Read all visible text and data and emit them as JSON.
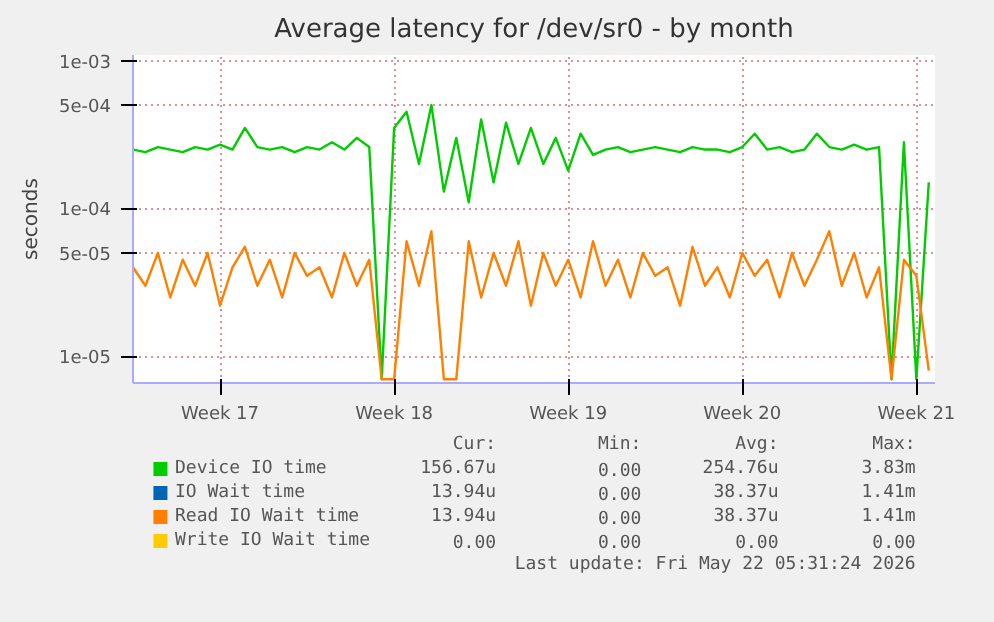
{
  "chart_data": {
    "type": "line",
    "title": "Average latency for /dev/sr0 - by month",
    "ylabel": "seconds",
    "log": true,
    "grid": true,
    "legend": "bottom",
    "xlim": [
      "2026-04-20T00:00",
      "2026-05-22T06:00"
    ],
    "xticks": [
      {
        "value": "2026-04-23T12:00",
        "label": "Week 17"
      },
      {
        "value": "2026-04-30T12:00",
        "label": "Week 18"
      },
      {
        "value": "2026-05-07T12:00",
        "label": "Week 19"
      },
      {
        "value": "2026-05-14T12:00",
        "label": "Week 20"
      },
      {
        "value": "2026-05-21T12:00",
        "label": "Week 21"
      }
    ],
    "ylim": [
      6.6e-06,
      0.00109
    ],
    "yticks": [
      {
        "value": 1e-05,
        "label": "1e-05"
      },
      {
        "value": 5e-05,
        "label": "5e-05"
      },
      {
        "value": 0.0001,
        "label": "1e-04"
      },
      {
        "value": 0.0005,
        "label": "5e-04"
      },
      {
        "value": 0.001,
        "label": "1e-03"
      }
    ],
    "x": [
      "2026-04-20T00:00",
      "2026-04-20T12:00",
      "2026-04-21T00:00",
      "2026-04-21T12:00",
      "2026-04-22T00:00",
      "2026-04-22T12:00",
      "2026-04-23T00:00",
      "2026-04-23T12:00",
      "2026-04-24T00:00",
      "2026-04-24T12:00",
      "2026-04-25T00:00",
      "2026-04-25T12:00",
      "2026-04-26T00:00",
      "2026-04-26T12:00",
      "2026-04-27T00:00",
      "2026-04-27T12:00",
      "2026-04-28T00:00",
      "2026-04-28T12:00",
      "2026-04-29T00:00",
      "2026-04-29T12:00",
      "2026-04-30T00:00",
      "2026-04-30T12:00",
      "2026-05-01T00:00",
      "2026-05-01T12:00",
      "2026-05-02T00:00",
      "2026-05-02T12:00",
      "2026-05-03T00:00",
      "2026-05-03T12:00",
      "2026-05-04T00:00",
      "2026-05-04T12:00",
      "2026-05-05T00:00",
      "2026-05-05T12:00",
      "2026-05-06T00:00",
      "2026-05-06T12:00",
      "2026-05-07T00:00",
      "2026-05-07T12:00",
      "2026-05-08T00:00",
      "2026-05-08T12:00",
      "2026-05-09T00:00",
      "2026-05-09T12:00",
      "2026-05-10T00:00",
      "2026-05-10T12:00",
      "2026-05-11T00:00",
      "2026-05-11T12:00",
      "2026-05-12T00:00",
      "2026-05-12T12:00",
      "2026-05-13T00:00",
      "2026-05-13T12:00",
      "2026-05-14T00:00",
      "2026-05-14T12:00",
      "2026-05-15T00:00",
      "2026-05-15T12:00",
      "2026-05-16T00:00",
      "2026-05-16T12:00",
      "2026-05-17T00:00",
      "2026-05-17T12:00",
      "2026-05-18T00:00",
      "2026-05-18T12:00",
      "2026-05-19T00:00",
      "2026-05-19T12:00",
      "2026-05-20T00:00",
      "2026-05-20T12:00",
      "2026-05-21T00:00",
      "2026-05-21T12:00",
      "2026-05-22T00:00"
    ],
    "series": [
      {
        "name": "Device IO time",
        "color": "#00cc00",
        "values": [
          0.00025,
          0.00024,
          0.00026,
          0.00025,
          0.00024,
          0.00026,
          0.00025,
          0.00027,
          0.00025,
          0.00035,
          0.00026,
          0.00025,
          0.00026,
          0.00024,
          0.00026,
          0.00025,
          0.00028,
          0.00025,
          0.0003,
          0.00026,
          7e-06,
          0.00035,
          0.00045,
          0.0002,
          0.0005,
          0.00013,
          0.0003,
          0.00011,
          0.0004,
          0.00015,
          0.00038,
          0.0002,
          0.00035,
          0.0002,
          0.0003,
          0.00018,
          0.00032,
          0.00023,
          0.00025,
          0.00026,
          0.00024,
          0.00025,
          0.00026,
          0.00025,
          0.00024,
          0.00026,
          0.00025,
          0.00025,
          0.00024,
          0.00026,
          0.00032,
          0.00025,
          0.00026,
          0.00024,
          0.00025,
          0.00032,
          0.00026,
          0.00025,
          0.00027,
          0.00025,
          0.00026,
          7e-06,
          0.00028,
          7e-06,
          0.00015
        ]
      },
      {
        "name": "IO Wait time",
        "color": "#0066b3",
        "values": [
          null,
          null,
          null,
          null,
          null,
          null,
          null,
          null,
          null,
          null,
          null,
          null,
          null,
          null,
          null,
          null,
          null,
          null,
          null,
          null,
          null,
          null,
          null,
          null,
          null,
          null,
          null,
          null,
          null,
          null,
          null,
          null,
          null,
          null,
          null,
          null,
          null,
          null,
          null,
          null,
          null,
          null,
          null,
          null,
          null,
          null,
          null,
          null,
          null,
          null,
          null,
          null,
          null,
          null,
          null,
          null,
          null,
          null,
          null,
          null,
          null,
          null,
          null,
          null,
          null
        ]
      },
      {
        "name": "Read IO Wait time",
        "color": "#ff8000",
        "values": [
          4e-05,
          3e-05,
          5e-05,
          2.5e-05,
          4.5e-05,
          3e-05,
          5e-05,
          2.2e-05,
          4e-05,
          5.5e-05,
          3e-05,
          4.5e-05,
          2.5e-05,
          5e-05,
          3.5e-05,
          4e-05,
          2.5e-05,
          5e-05,
          3e-05,
          4.5e-05,
          7e-06,
          7e-06,
          6e-05,
          3e-05,
          7e-05,
          7e-06,
          7e-06,
          6e-05,
          2.5e-05,
          5e-05,
          3e-05,
          6e-05,
          2.2e-05,
          5e-05,
          3e-05,
          4.5e-05,
          2.5e-05,
          6e-05,
          3e-05,
          4.5e-05,
          2.5e-05,
          5e-05,
          3.5e-05,
          4e-05,
          2.2e-05,
          5.5e-05,
          3e-05,
          4e-05,
          2.5e-05,
          5e-05,
          3.5e-05,
          4.5e-05,
          2.5e-05,
          5e-05,
          3e-05,
          4.5e-05,
          7e-05,
          3e-05,
          5e-05,
          2.5e-05,
          4e-05,
          7e-06,
          4.5e-05,
          3.5e-05,
          8e-06
        ]
      },
      {
        "name": "Write IO Wait time",
        "color": "#ffcc00",
        "values": [
          null,
          null,
          null,
          null,
          null,
          null,
          null,
          null,
          null,
          null,
          null,
          null,
          null,
          null,
          null,
          null,
          null,
          null,
          null,
          null,
          null,
          null,
          null,
          null,
          null,
          null,
          null,
          null,
          null,
          null,
          null,
          null,
          null,
          null,
          null,
          null,
          null,
          null,
          null,
          null,
          null,
          null,
          null,
          null,
          null,
          null,
          null,
          null,
          null,
          null,
          null,
          null,
          null,
          null,
          null,
          null,
          null,
          null,
          null,
          null,
          null,
          null,
          null,
          null,
          null
        ]
      }
    ],
    "annotations": [
      "Cur:",
      "Min:",
      "Avg:",
      "Max:",
      "156.67u",
      "0.00",
      "254.76u",
      "3.83m",
      "13.94u",
      "0.00",
      "38.37u",
      "1.41m",
      "13.94u",
      "0.00",
      "38.37u",
      "1.41m",
      "0.00",
      "0.00",
      "0.00",
      "0.00",
      "Last update: Fri May 22 05:31:24 2026"
    ]
  }
}
